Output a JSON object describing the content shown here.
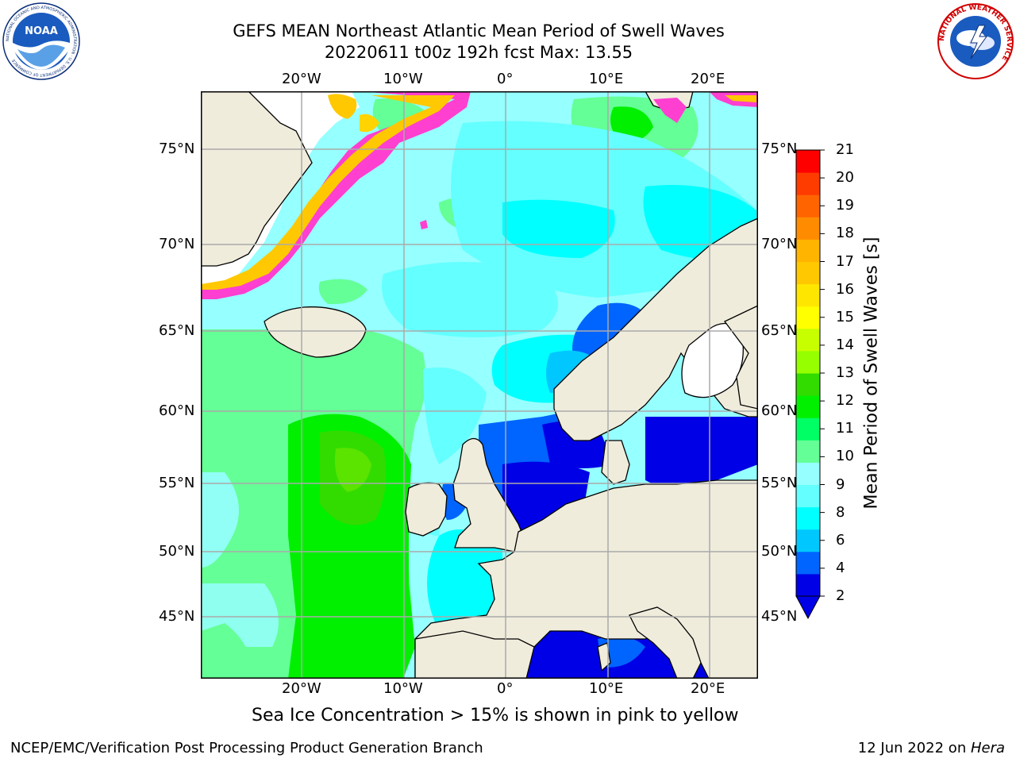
{
  "header": {
    "title_line1": "GEFS MEAN Northeast Atlantic Mean Period of Swell Waves",
    "title_line2": "20220611 t00z 192h fcst   Max: 13.55"
  },
  "logos": {
    "left": "noaa-logo",
    "left_text": "NATIONAL OCEANIC AND ATMOSPHERIC ADMINISTRATION · U.S. DEPARTMENT OF COMMERCE",
    "left_center": "NOAA",
    "right": "nws-logo",
    "right_text": "NATIONAL WEATHER SERVICE"
  },
  "map": {
    "lon_labels": [
      "20°W",
      "10°W",
      "0°",
      "10°E",
      "20°E"
    ],
    "lat_labels": [
      "75°N",
      "70°N",
      "65°N",
      "60°N",
      "55°N",
      "50°N",
      "45°N"
    ],
    "ice_note": "Sea Ice Concentration > 15% is shown in pink to yellow",
    "colors": {
      "land": "#efecdc",
      "ice_low": "#ff3fd0",
      "ice_high": "#ffd400"
    }
  },
  "colorbar": {
    "label": "Mean Period of Swell Waves [s]",
    "ticks": [
      "21",
      "20",
      "19",
      "18",
      "17",
      "16",
      "15",
      "14",
      "13",
      "12",
      "11",
      "10",
      "9",
      "8",
      "6",
      "4",
      "2"
    ],
    "colors": [
      "#0000e6",
      "#0064ff",
      "#00c8ff",
      "#00ffff",
      "#64ffff",
      "#96ffff",
      "#64ff96",
      "#00ff64",
      "#00f000",
      "#32dc00",
      "#96ff00",
      "#c8ff00",
      "#ffff00",
      "#ffe600",
      "#ffc800",
      "#ffb400",
      "#ff8c00",
      "#ff6400",
      "#ff3c00",
      "#ff0000"
    ]
  },
  "footer": {
    "left": "NCEP/EMC/Verification Post Processing Product Generation Branch",
    "right_date": "12 Jun 2022 on ",
    "right_machine": "Hera"
  }
}
